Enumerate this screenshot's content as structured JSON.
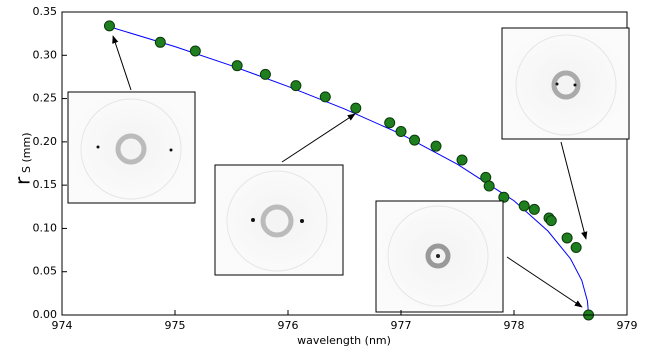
{
  "chart_data": {
    "type": "scatter",
    "x_label": "wavelength (nm)",
    "y_label": [
      "r",
      "S (mm)"
    ],
    "xlim": [
      974,
      979
    ],
    "xticks": [
      974,
      975,
      976,
      977,
      978,
      979
    ],
    "ylim": [
      0,
      0.35
    ],
    "yticks": [
      {
        "value": 0,
        "label": "0.00"
      },
      0.05,
      {
        "value": 0.1,
        "label": "0.10"
      },
      0.15,
      {
        "value": 0.2,
        "label": "0.20"
      },
      0.25,
      {
        "value": 0.3,
        "label": "0.30"
      },
      0.35
    ],
    "series": [
      {
        "type": "line",
        "color": "#0000ff",
        "x": [
          974.42,
          975,
          975.5,
          976,
          976.5,
          977,
          977.5,
          978,
          978.3,
          978.5,
          978.6,
          978.65,
          978.66
        ],
        "values": [
          0.333,
          0.31,
          0.288,
          0.264,
          0.238,
          0.209,
          0.174,
          0.132,
          0.097,
          0.065,
          0.04,
          0.016,
          0
        ]
      },
      {
        "type": "scatter",
        "color": "#1f7f1f",
        "x": [
          974.42,
          974.87,
          975.18,
          975.55,
          975.8,
          976.07,
          976.33,
          976.6,
          976.9,
          977.0,
          977.12,
          977.31,
          977.54,
          977.75,
          977.78,
          977.91,
          978.09,
          978.18,
          978.31,
          978.33,
          978.47,
          978.55,
          978.66
        ],
        "values": [
          0.334,
          0.315,
          0.305,
          0.288,
          0.278,
          0.265,
          0.252,
          0.239,
          0.222,
          0.212,
          0.202,
          0.195,
          0.179,
          0.159,
          0.149,
          0.136,
          0.126,
          0.122,
          0.112,
          0.109,
          0.089,
          0.078,
          0
        ]
      }
    ]
  }
}
